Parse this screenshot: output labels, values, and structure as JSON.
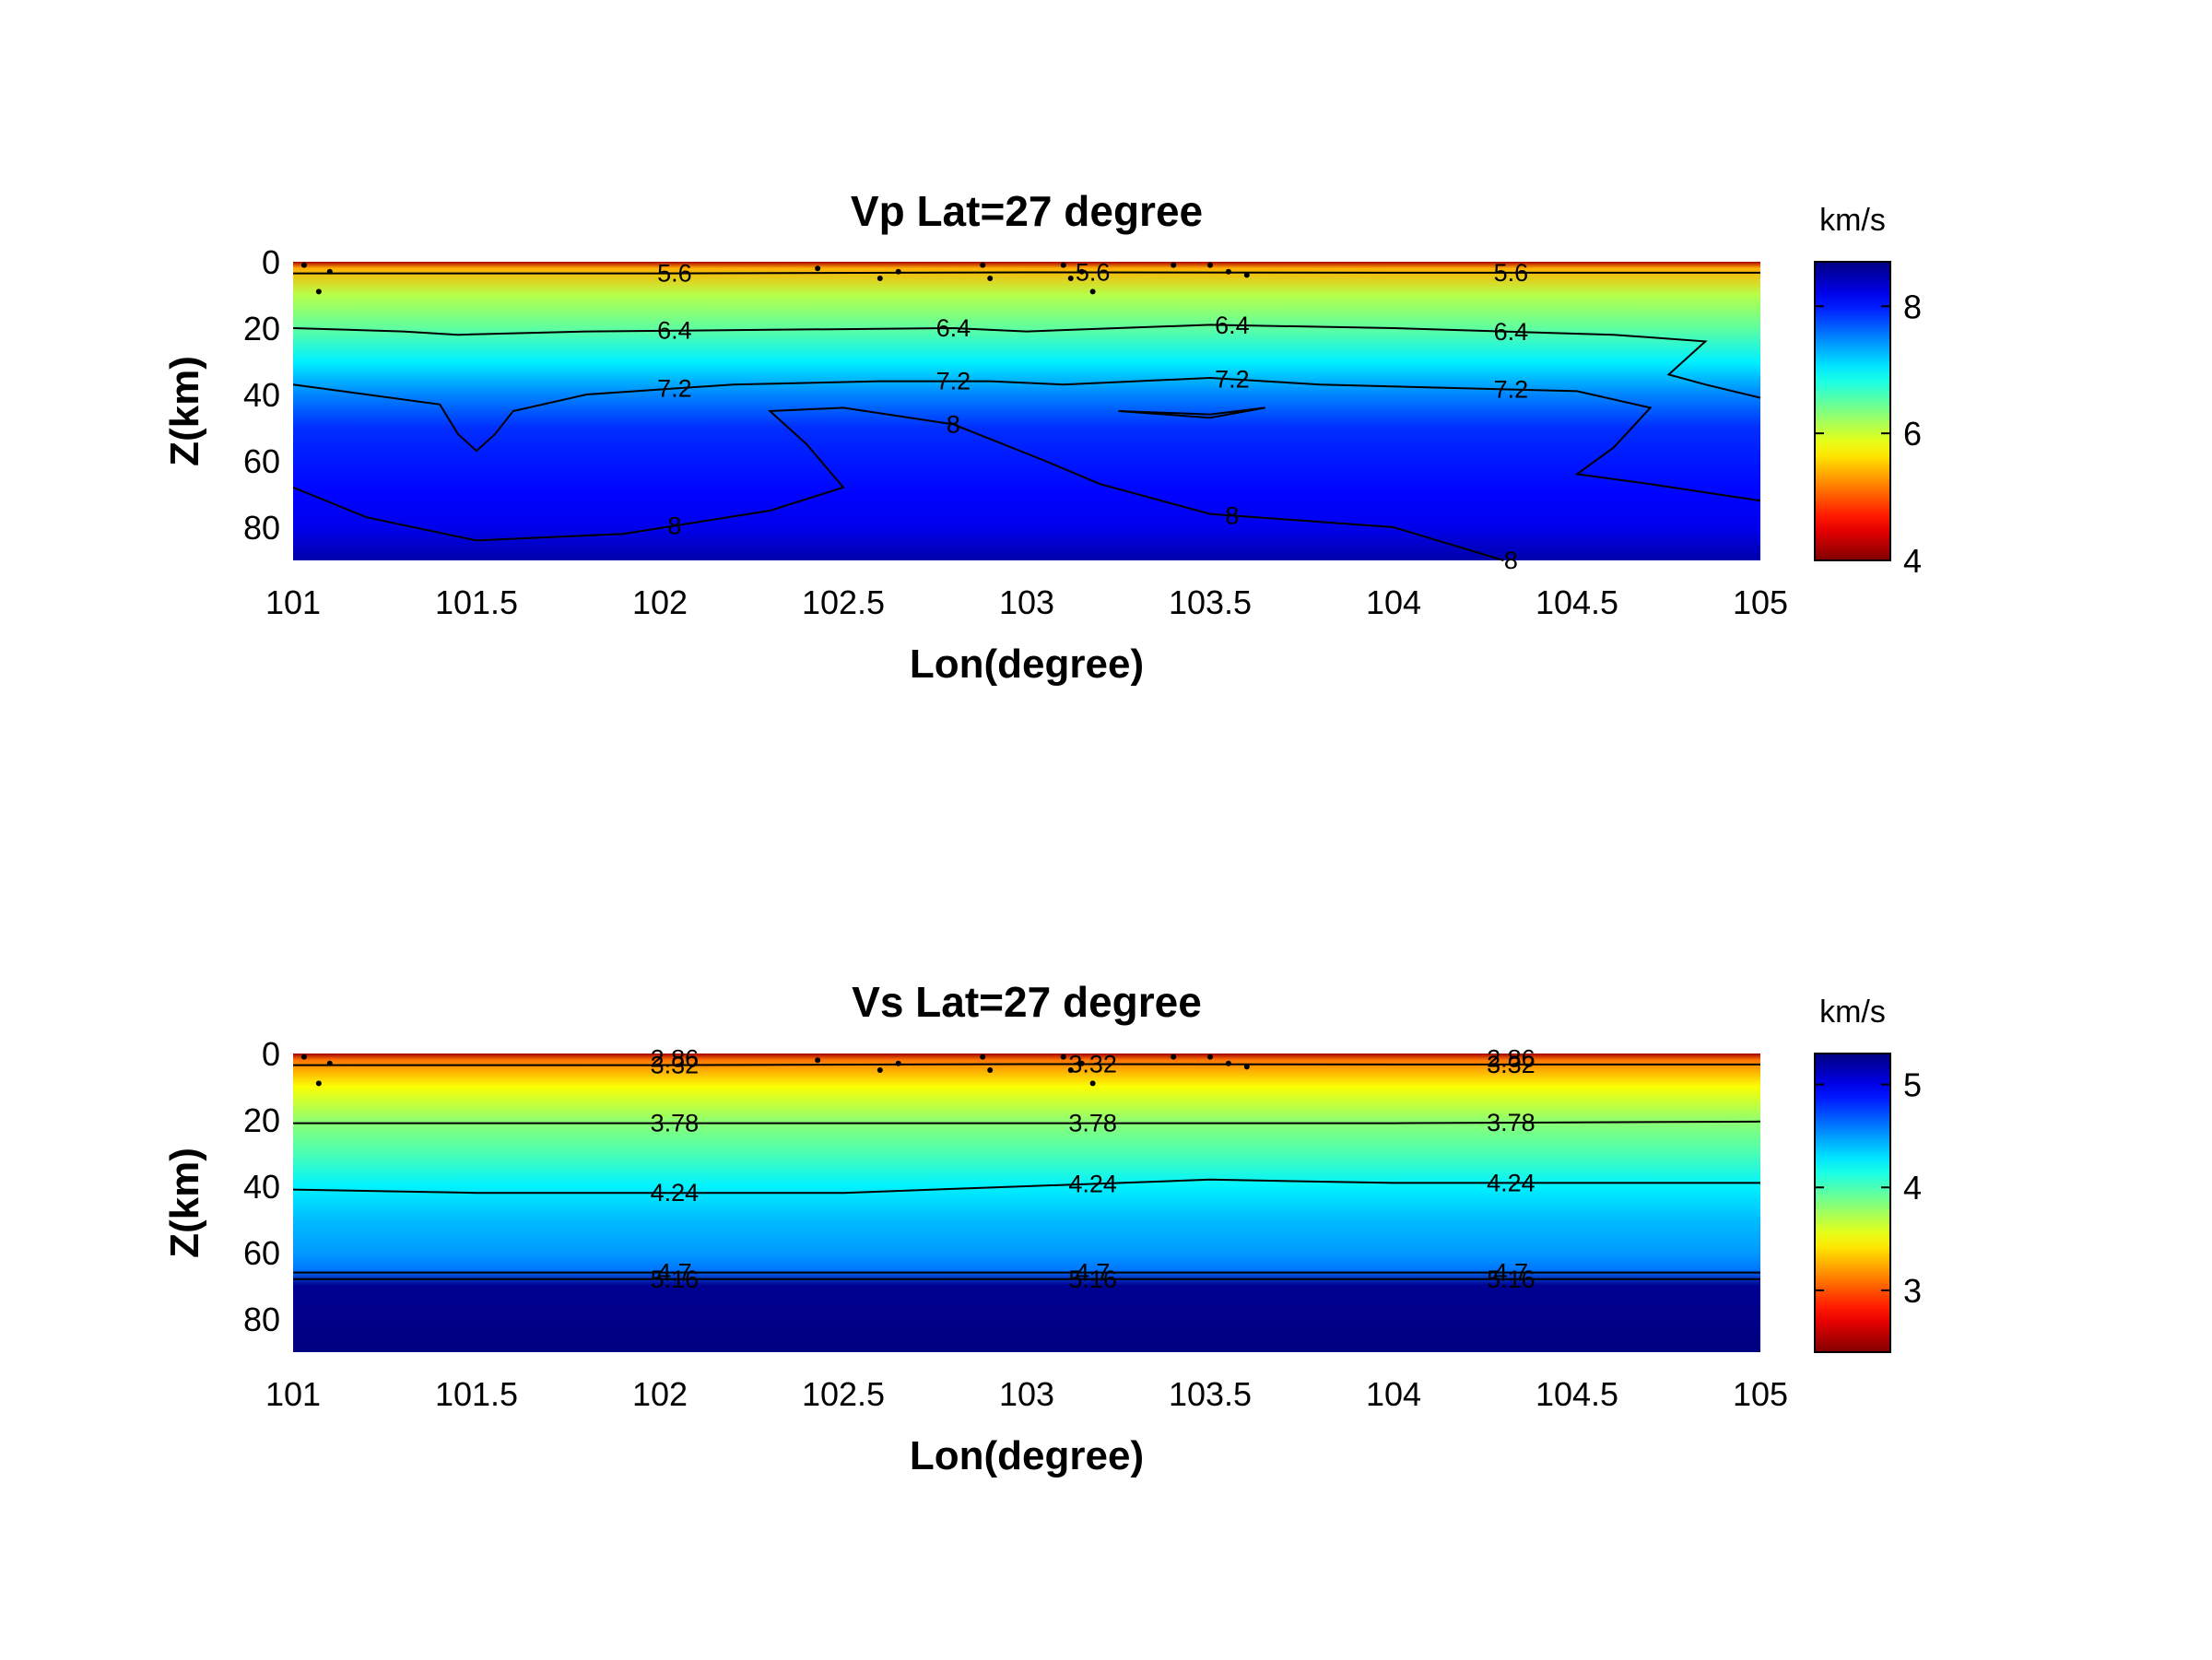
{
  "chart_data": [
    {
      "type": "heatmap",
      "title": "Vp Lat=27 degree",
      "xlabel": "Lon(degree)",
      "ylabel": "Z(km)",
      "xlim": [
        101,
        105
      ],
      "ylim": [
        0,
        90
      ],
      "y_reversed": true,
      "xticks": [
        "101",
        "101.5",
        "102",
        "102.5",
        "103",
        "103.5",
        "104",
        "104.5",
        "105"
      ],
      "yticks": [
        "0",
        "20",
        "40",
        "60",
        "80"
      ],
      "colorbar": {
        "label": "km/s",
        "range": [
          4,
          8.7
        ],
        "ticks": [
          "4",
          "6",
          "8"
        ],
        "colormap": "jet-reversed"
      },
      "contour_levels": [
        5.6,
        6.4,
        7.2,
        8
      ],
      "contour_labels": [
        "5.6",
        "5.6",
        "5.6",
        "6.4",
        "6.4",
        "6.4",
        "6.4",
        "7.2",
        "7.2",
        "7.2",
        "7.2",
        "8",
        "8",
        "8",
        "8"
      ],
      "depth_profile_km": [
        0,
        2,
        10,
        20,
        30,
        40,
        50,
        60,
        70,
        80,
        90
      ],
      "velocity_profile": [
        4.2,
        5.4,
        6.1,
        6.5,
        7.0,
        7.5,
        7.9,
        8.0,
        8.1,
        8.2,
        8.5
      ],
      "contours": [
        {
          "level": 5.6,
          "points": [
            [
              101,
              3.5
            ],
            [
              102,
              3.5
            ],
            [
              103,
              3.2
            ],
            [
              104,
              3.3
            ],
            [
              105,
              3.3
            ]
          ]
        },
        {
          "level": 6.4,
          "points": [
            [
              101,
              20
            ],
            [
              101.3,
              21
            ],
            [
              101.45,
              22
            ],
            [
              101.8,
              21
            ],
            [
              102.3,
              20.5
            ],
            [
              102.8,
              20
            ],
            [
              103,
              21
            ],
            [
              103.5,
              19
            ],
            [
              104,
              20
            ],
            [
              104.6,
              22
            ],
            [
              104.85,
              24
            ],
            [
              104.75,
              34
            ],
            [
              104.85,
              37
            ],
            [
              105,
              41
            ]
          ]
        },
        {
          "level": 7.2,
          "points": [
            [
              101,
              37
            ],
            [
              101.4,
              43
            ],
            [
              101.45,
              52
            ],
            [
              101.5,
              57
            ],
            [
              101.55,
              52
            ],
            [
              101.6,
              45
            ],
            [
              101.8,
              40
            ],
            [
              102.2,
              37
            ],
            [
              102.6,
              36
            ],
            [
              102.9,
              36
            ],
            [
              103.1,
              37
            ],
            [
              103.5,
              35
            ],
            [
              103.8,
              37
            ],
            [
              104.5,
              39
            ],
            [
              104.7,
              44
            ],
            [
              104.6,
              56
            ],
            [
              104.5,
              64
            ],
            [
              104.7,
              67
            ],
            [
              105,
              72
            ]
          ]
        },
        {
          "level": 8,
          "points": [
            [
              101,
              68
            ],
            [
              101.2,
              77
            ],
            [
              101.5,
              84
            ],
            [
              101.9,
              82
            ],
            [
              102.3,
              75
            ],
            [
              102.5,
              68
            ],
            [
              102.4,
              55
            ],
            [
              102.3,
              45
            ],
            [
              102.5,
              44
            ],
            [
              102.8,
              49
            ],
            [
              103.05,
              60
            ],
            [
              103.2,
              67
            ],
            [
              103.5,
              76
            ],
            [
              104,
              80
            ],
            [
              104.3,
              90
            ]
          ]
        },
        {
          "level": 8,
          "points": [
            [
              103.25,
              45
            ],
            [
              103.5,
              46
            ],
            [
              103.65,
              44
            ],
            [
              103.5,
              47
            ],
            [
              103.25,
              45
            ]
          ]
        }
      ]
    },
    {
      "type": "heatmap",
      "title": "Vs Lat=27 degree",
      "xlabel": "Lon(degree)",
      "ylabel": "Z(km)",
      "xlim": [
        101,
        105
      ],
      "ylim": [
        0,
        90
      ],
      "y_reversed": true,
      "xticks": [
        "101",
        "101.5",
        "102",
        "102.5",
        "103",
        "103.5",
        "104",
        "104.5",
        "105"
      ],
      "yticks": [
        "0",
        "20",
        "40",
        "60",
        "80"
      ],
      "colorbar": {
        "label": "km/s",
        "range": [
          2.4,
          5.3
        ],
        "ticks": [
          "3",
          "4",
          "5"
        ],
        "colormap": "jet-reversed"
      },
      "contour_levels": [
        2.86,
        3.32,
        3.78,
        4.24,
        4.7,
        5.16
      ],
      "contour_labels": [
        "2.86",
        "2.86",
        "3.32",
        "3.32",
        "3.32",
        "3.78",
        "3.78",
        "3.78",
        "4.24",
        "4.24",
        "4.24",
        "4.7",
        "4.7",
        "4.7",
        "5.16",
        "5.16",
        "5.16"
      ],
      "depth_profile_km": [
        0,
        2,
        10,
        20,
        30,
        40,
        50,
        60,
        65,
        70,
        90
      ],
      "velocity_profile": [
        2.5,
        3.1,
        3.5,
        3.8,
        4.0,
        4.25,
        4.4,
        4.5,
        4.6,
        5.25,
        5.3
      ],
      "contours": [
        {
          "level": 3.32,
          "points": [
            [
              101,
              3.5
            ],
            [
              102,
              3.5
            ],
            [
              103,
              3.2
            ],
            [
              104,
              3.3
            ],
            [
              105,
              3.3
            ]
          ]
        },
        {
          "level": 3.78,
          "points": [
            [
              101,
              21
            ],
            [
              102,
              21
            ],
            [
              103,
              21
            ],
            [
              104,
              21
            ],
            [
              105,
              20.5
            ]
          ]
        },
        {
          "level": 4.24,
          "points": [
            [
              101,
              41
            ],
            [
              101.5,
              42
            ],
            [
              102.5,
              42
            ],
            [
              103,
              40
            ],
            [
              103.5,
              38
            ],
            [
              104,
              39
            ],
            [
              105,
              39
            ]
          ]
        },
        {
          "level": 4.7,
          "points": [
            [
              101,
              66
            ],
            [
              102,
              66
            ],
            [
              103,
              66
            ],
            [
              104,
              66
            ],
            [
              105,
              66
            ]
          ]
        },
        {
          "level": 5.16,
          "points": [
            [
              101,
              68
            ],
            [
              102,
              68
            ],
            [
              103,
              68
            ],
            [
              104,
              68
            ],
            [
              105,
              68
            ]
          ]
        }
      ]
    }
  ]
}
